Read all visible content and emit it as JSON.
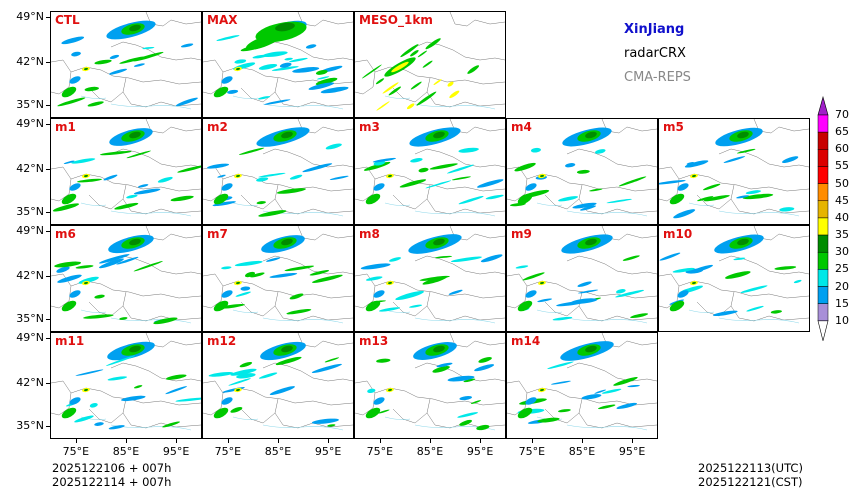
{
  "region": "XinJiang",
  "source": "radarCRX",
  "model": "CMA-REPS",
  "panels": [
    "CTL",
    "MAX",
    "MESO_1km",
    "m1",
    "m2",
    "m3",
    "m4",
    "m5",
    "m6",
    "m7",
    "m8",
    "m9",
    "m10",
    "m11",
    "m12",
    "m13",
    "m14"
  ],
  "lat_labels": [
    "49°N",
    "42°N",
    "35°N"
  ],
  "lon_labels": [
    "75°E",
    "85°E",
    "95°E"
  ],
  "init_time_utc": "2025122106  +  007h",
  "init_time_cst": "2025122114  +  007h",
  "valid_time_utc": "2025122113(UTC)",
  "valid_time_cst": "2025122121(CST)",
  "colorbar": {
    "levels": [
      "70",
      "65",
      "60",
      "55",
      "50",
      "45",
      "40",
      "35",
      "30",
      "25",
      "20",
      "15",
      "10"
    ],
    "colors": [
      "#a020c8",
      "#ff00ff",
      "#c80000",
      "#dc0000",
      "#ff0000",
      "#ff8c00",
      "#e6b400",
      "#ffff00",
      "#008c00",
      "#00c800",
      "#00e8e8",
      "#00a0f0",
      "#a88fd8"
    ]
  }
}
